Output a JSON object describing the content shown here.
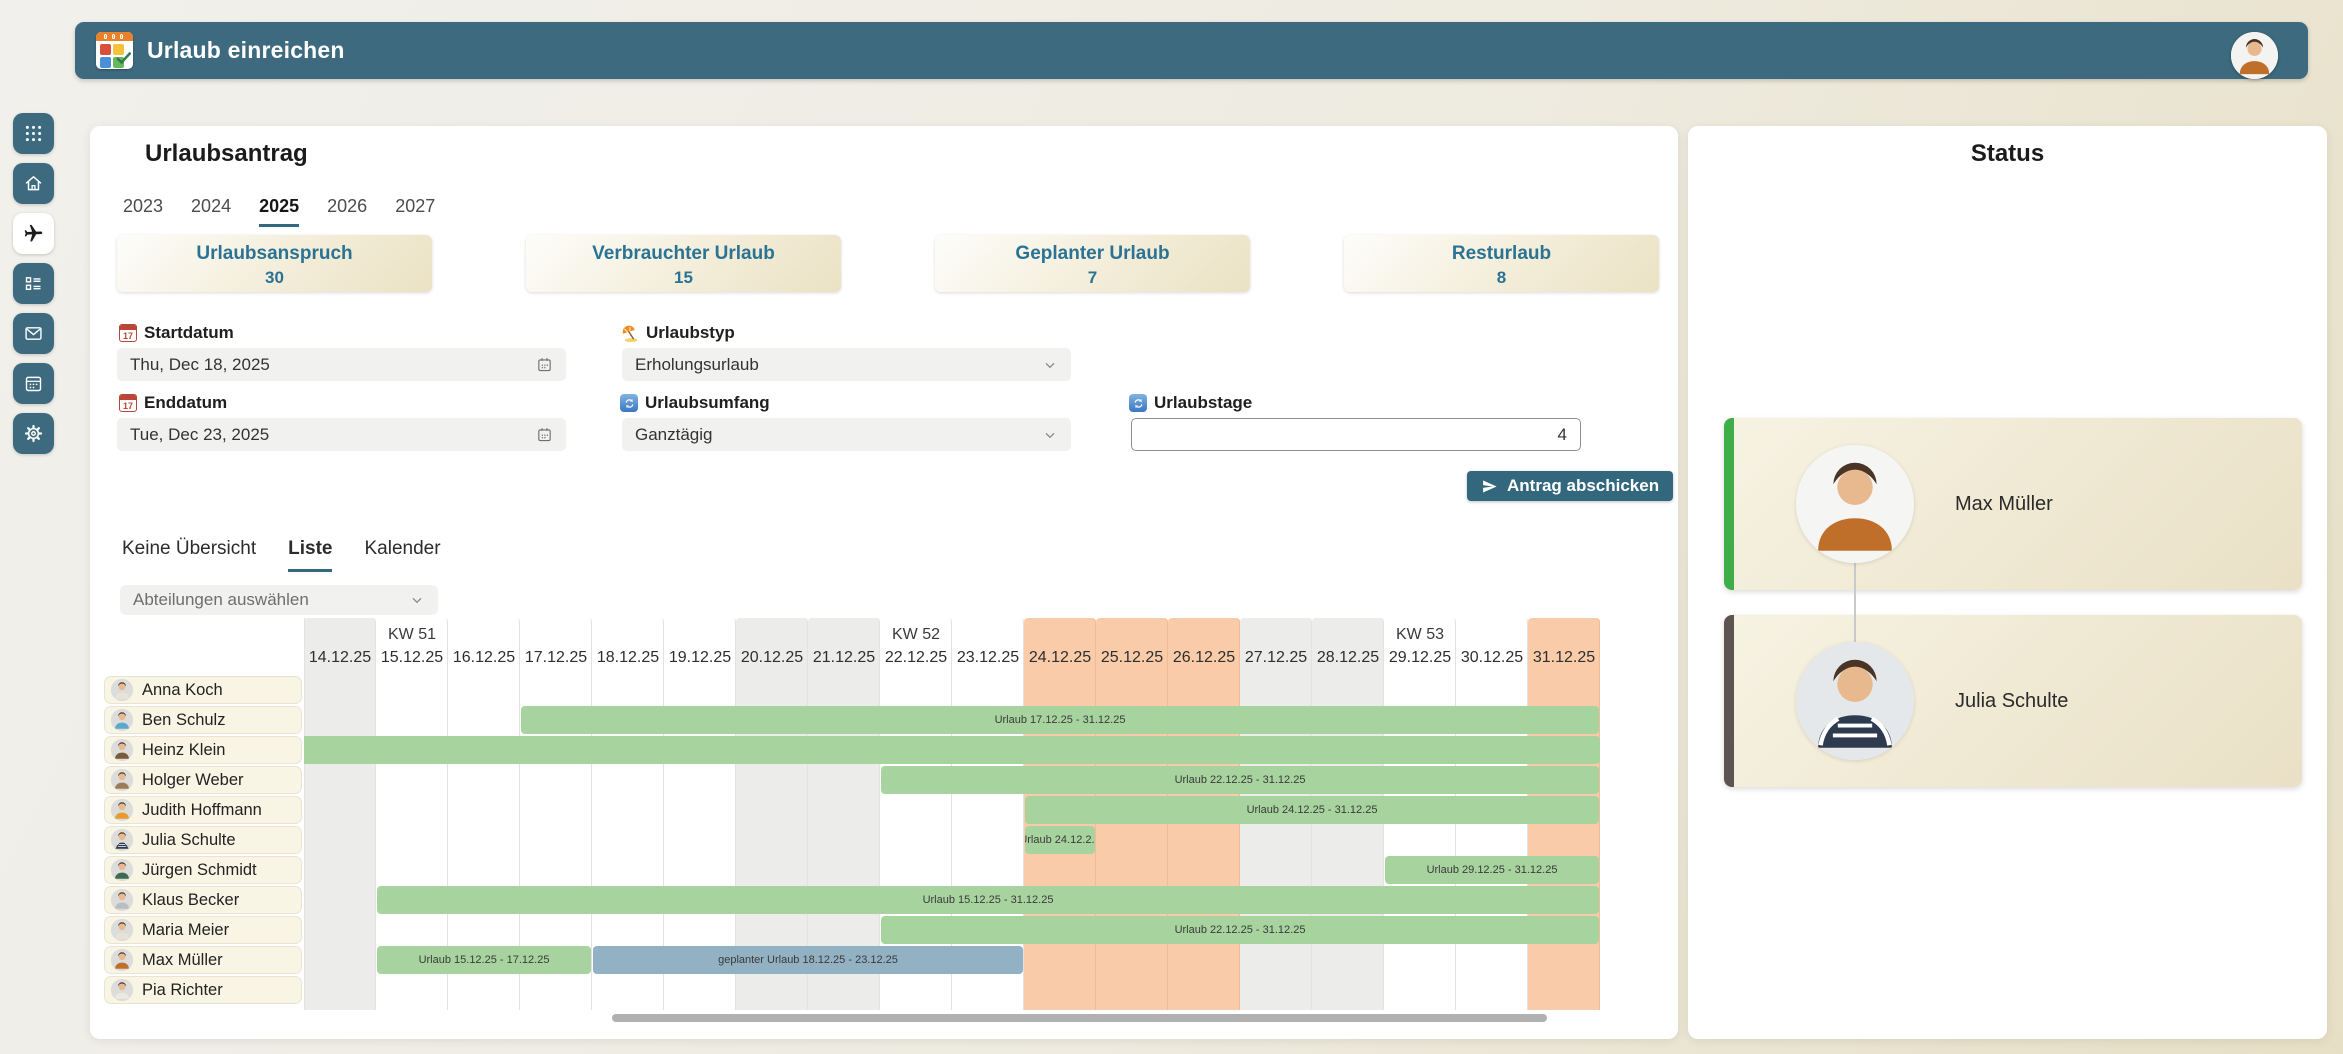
{
  "header": {
    "title": "Urlaub einreichen",
    "app_icon": "vacation-planner-logo",
    "user_avatar": "Max Müller"
  },
  "sidebar": {
    "items": [
      {
        "name": "apps",
        "icon": "apps-grid-icon",
        "active": false
      },
      {
        "name": "home",
        "icon": "home-icon",
        "active": false
      },
      {
        "name": "vacation",
        "icon": "airplane-icon",
        "active": true
      },
      {
        "name": "tasks",
        "icon": "task-list-icon",
        "active": false
      },
      {
        "name": "mail",
        "icon": "mail-icon",
        "active": false
      },
      {
        "name": "calendar",
        "icon": "calendar-icon",
        "active": false
      },
      {
        "name": "settings",
        "icon": "gear-icon",
        "active": false
      }
    ]
  },
  "main": {
    "title": "Urlaubsantrag",
    "year_tabs": {
      "items": [
        "2023",
        "2024",
        "2025",
        "2026",
        "2027"
      ],
      "active": "2025"
    },
    "stats": [
      {
        "label": "Urlaubsanspruch",
        "value": "30"
      },
      {
        "label": "Verbrauchter Urlaub",
        "value": "15"
      },
      {
        "label": "Geplanter Urlaub",
        "value": "7"
      },
      {
        "label": "Resturlaub",
        "value": "8"
      }
    ],
    "form": {
      "startdatum": {
        "label": "Startdatum",
        "value": "Thu, Dec 18, 2025",
        "icon": "red-calendar-icon"
      },
      "enddatum": {
        "label": "Enddatum",
        "value": "Tue, Dec 23, 2025",
        "icon": "red-calendar-icon"
      },
      "urlaubstyp": {
        "label": "Urlaubstyp",
        "value": "Erholungsurlaub",
        "icon": "beach-umbrella-icon"
      },
      "urlaubsumfang": {
        "label": "Urlaubsumfang",
        "value": "Ganztägig",
        "icon": "refresh-icon"
      },
      "urlaubstage": {
        "label": "Urlaubstage",
        "value": "4",
        "icon": "refresh-icon"
      },
      "submit_label": "Antrag abschicken"
    },
    "view_tabs": {
      "items": [
        "Keine Übersicht",
        "Liste",
        "Kalender"
      ],
      "active": "Liste"
    },
    "department_filter": {
      "placeholder": "Abteilungen auswählen"
    },
    "gantt": {
      "weeks": [
        {
          "label": "KW 51",
          "col": 1
        },
        {
          "label": "KW 52",
          "col": 8
        },
        {
          "label": "KW 53",
          "col": 15
        }
      ],
      "days": [
        {
          "date": "14.12.25",
          "type": "weekend"
        },
        {
          "date": "15.12.25",
          "type": "work"
        },
        {
          "date": "16.12.25",
          "type": "work"
        },
        {
          "date": "17.12.25",
          "type": "work"
        },
        {
          "date": "18.12.25",
          "type": "work"
        },
        {
          "date": "19.12.25",
          "type": "work"
        },
        {
          "date": "20.12.25",
          "type": "weekend"
        },
        {
          "date": "21.12.25",
          "type": "weekend"
        },
        {
          "date": "22.12.25",
          "type": "work"
        },
        {
          "date": "23.12.25",
          "type": "work"
        },
        {
          "date": "24.12.25",
          "type": "holiday"
        },
        {
          "date": "25.12.25",
          "type": "holiday"
        },
        {
          "date": "26.12.25",
          "type": "holiday"
        },
        {
          "date": "27.12.25",
          "type": "weekend"
        },
        {
          "date": "28.12.25",
          "type": "weekend"
        },
        {
          "date": "29.12.25",
          "type": "work"
        },
        {
          "date": "30.12.25",
          "type": "work"
        },
        {
          "date": "31.12.25",
          "type": "holiday"
        }
      ],
      "employees": [
        {
          "name": "Anna Koch",
          "shirt": "#e9e2d8",
          "bars": []
        },
        {
          "name": "Ben Schulz",
          "shirt": "#5ba8c9",
          "bars": [
            {
              "label": "Urlaub 17.12.25 - 31.12.25",
              "start": 3,
              "end": 17,
              "type": "approved"
            }
          ]
        },
        {
          "name": "Heinz Klein",
          "shirt": "#7a5a3a",
          "bars": [
            {
              "label": "",
              "start": 0,
              "end": 17,
              "type": "approved",
              "clipped_left": true
            }
          ]
        },
        {
          "name": "Holger Weber",
          "shirt": "#9c7b5a",
          "bars": [
            {
              "label": "Urlaub 22.12.25 - 31.12.25",
              "start": 8,
              "end": 17,
              "type": "approved"
            }
          ]
        },
        {
          "name": "Judith Hoffmann",
          "shirt": "#e89a2e",
          "bars": [
            {
              "label": "Urlaub 24.12.25 - 31.12.25",
              "start": 10,
              "end": 17,
              "type": "approved"
            }
          ]
        },
        {
          "name": "Julia Schulte",
          "shirt": "#2e3a4d",
          "bars": [
            {
              "label": "Urlaub 24.12.2...",
              "start": 10,
              "end": 10,
              "type": "approved"
            }
          ]
        },
        {
          "name": "Jürgen Schmidt",
          "shirt": "#3e6b4f",
          "bars": [
            {
              "label": "Urlaub 29.12.25 - 31.12.25",
              "start": 15,
              "end": 17,
              "type": "approved"
            }
          ]
        },
        {
          "name": "Klaus Becker",
          "shirt": "#b9bdc0",
          "bars": [
            {
              "label": "Urlaub 15.12.25 - 31.12.25",
              "start": 1,
              "end": 17,
              "type": "approved"
            }
          ]
        },
        {
          "name": "Maria Meier",
          "shirt": "#e6e1d9",
          "bars": [
            {
              "label": "Urlaub 22.12.25 - 31.12.25",
              "start": 8,
              "end": 17,
              "type": "approved"
            }
          ]
        },
        {
          "name": "Max Müller",
          "shirt": "#c06f2a",
          "bars": [
            {
              "label": "Urlaub 15.12.25 - 17.12.25",
              "start": 1,
              "end": 3,
              "type": "approved"
            },
            {
              "label": "geplanter Urlaub 18.12.25 - 23.12.25",
              "start": 4,
              "end": 9,
              "type": "planned"
            }
          ]
        },
        {
          "name": "Pia Richter",
          "shirt": "#ece8e2",
          "bars": []
        }
      ]
    }
  },
  "status_panel": {
    "title": "Status",
    "cards": [
      {
        "name": "Max Müller",
        "accent": "#3fae49",
        "shirt": "#c06f2a",
        "photo_bg": "#f5f5f3"
      },
      {
        "name": "Julia Schulte",
        "accent": "#5d5451",
        "shirt": "#2e3a4d",
        "photo_bg": "#e5e8ea"
      }
    ]
  },
  "colors": {
    "topbar": "#3d6a7e",
    "accent_teal": "#32697f",
    "stat_text": "#2b7394",
    "approved_bar": "#a7d49e",
    "planned_bar": "#92b2c3",
    "holiday_column": "#f9cba9",
    "weekend_column": "#ececea",
    "status_approved": "#3fae49",
    "status_pending": "#5d5451"
  }
}
